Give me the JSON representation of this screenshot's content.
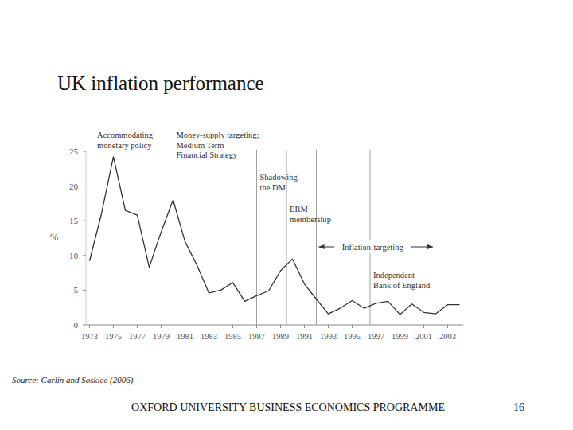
{
  "chart_data": {
    "type": "line",
    "title": "UK inflation performance",
    "y_label": "%",
    "source": "Source: Carlin and Soskice (2006)",
    "footer": "OXFORD UNIVERSITY BUSINESS ECONOMICS PROGRAMME",
    "page": 16,
    "x": [
      1973,
      1974,
      1975,
      1976,
      1977,
      1978,
      1979,
      1980,
      1981,
      1982,
      1983,
      1984,
      1985,
      1986,
      1987,
      1988,
      1989,
      1990,
      1991,
      1992,
      1993,
      1994,
      1995,
      1996,
      1997,
      1998,
      1999,
      2000,
      2001,
      2002,
      2003,
      2004
    ],
    "values": [
      9.2,
      16,
      24.2,
      16.5,
      15.8,
      8.3,
      13.4,
      18,
      12,
      8.6,
      4.6,
      5,
      6.1,
      3.4,
      4.2,
      4.9,
      7.8,
      9.5,
      5.9,
      3.7,
      1.6,
      2.4,
      3.5,
      2.4,
      3.1,
      3.4,
      1.5,
      3.0,
      1.8,
      1.6,
      2.9,
      2.9
    ],
    "color": "#333333",
    "xlim": [
      1972.7,
      2004.3
    ],
    "xticks": [
      1973,
      1975,
      1977,
      1979,
      1981,
      1983,
      1985,
      1987,
      1989,
      1991,
      1993,
      1995,
      1997,
      1999,
      2001,
      2003
    ],
    "ylim": [
      0,
      25
    ],
    "yticks": [
      0,
      5,
      10,
      15,
      20,
      25
    ],
    "grid": false,
    "annotations": [
      {
        "label": [
          "Accommodating",
          "monetary policy"
        ]
      }
    ],
    "events": [
      {
        "x": 1980,
        "label": [
          "Money-supply targeting;",
          "Medium Term",
          "Financial Strategy"
        ]
      },
      {
        "x": 1987,
        "label": [
          "Shadowing",
          "the DM"
        ]
      },
      {
        "x": 1989.5,
        "label": [
          "ERM",
          "membership"
        ]
      },
      {
        "x": 1992,
        "label": [
          "Inflation-targeting"
        ]
      },
      {
        "x": 1996.5,
        "label": [
          "Independent",
          "Bank of England"
        ]
      }
    ]
  }
}
